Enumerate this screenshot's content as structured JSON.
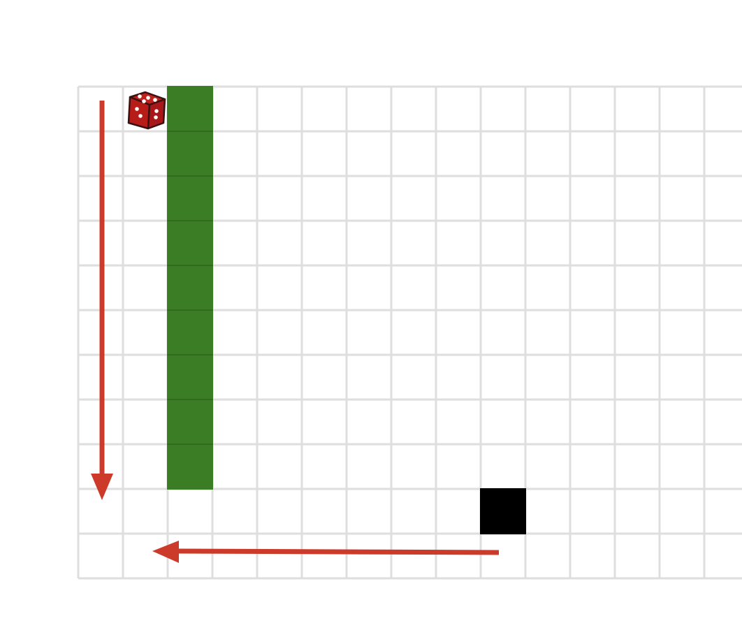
{
  "board": {
    "columns": 15,
    "rows": 11,
    "colors": {
      "background": "#ffffff",
      "grid_line": "#dedede",
      "wall": "#3a7d24",
      "wall_seam": "#2f6a1c",
      "goal": "#000000",
      "arrow": "#cc3a2a",
      "dice_body": "#c0211c",
      "dice_outline": "#3a1010",
      "dice_pips": "#ffffff"
    }
  },
  "player": {
    "icon": "red-dice-icon",
    "cell": {
      "col": 1,
      "row": 0
    }
  },
  "wall": {
    "col": 2,
    "row_start": 0,
    "row_end": 8
  },
  "goal": {
    "cell": {
      "col": 9,
      "row": 9
    }
  },
  "path_arrows": [
    {
      "name": "arrow-down",
      "direction": "down",
      "from": {
        "col": 0,
        "row": 0
      },
      "to": {
        "col": 0,
        "row": 9
      }
    },
    {
      "name": "arrow-left",
      "direction": "left",
      "from": {
        "col": 9,
        "row": 10
      },
      "to": {
        "col": 1,
        "row": 10
      }
    }
  ]
}
